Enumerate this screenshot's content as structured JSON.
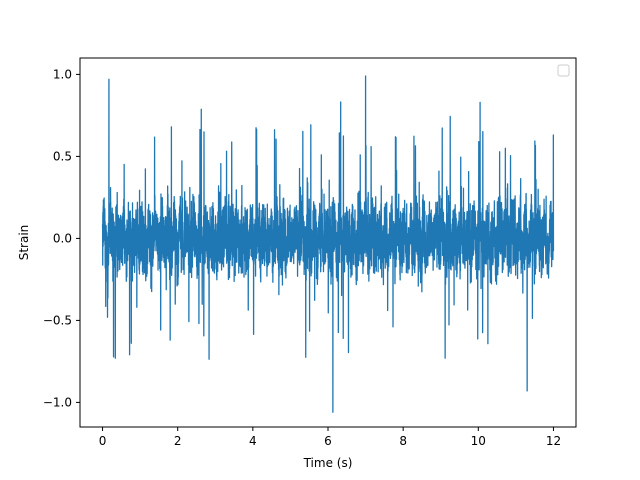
{
  "chart_data": {
    "type": "line",
    "title": "",
    "xlabel": "Time (s)",
    "ylabel": "Strain",
    "xlim": [
      -0.6,
      12.6
    ],
    "ylim": [
      -1.15,
      1.1
    ],
    "xticks": [
      0,
      2,
      4,
      6,
      8,
      10,
      12
    ],
    "xtick_labels": [
      "0",
      "2",
      "4",
      "6",
      "8",
      "10",
      "12"
    ],
    "yticks": [
      -1.0,
      -0.5,
      0.0,
      0.5,
      1.0
    ],
    "ytick_labels": [
      "−1.0",
      "−0.5",
      "0.0",
      "0.5",
      "1.0"
    ],
    "grid": false,
    "legend": {
      "placement": "top-right",
      "entries": []
    },
    "series": [
      {
        "color": "#1f77b4",
        "x_range": [
          0,
          12
        ],
        "sample_interval_s": 0.0025,
        "amplitude_envelope": [
          -1.06,
          0.99
        ],
        "notable_points": [
          {
            "x": 0.17,
            "y": 0.97
          },
          {
            "x": 6.13,
            "y": -1.06
          },
          {
            "x": 7.0,
            "y": 0.99
          },
          {
            "x": 11.3,
            "y": -0.93
          }
        ]
      }
    ]
  }
}
